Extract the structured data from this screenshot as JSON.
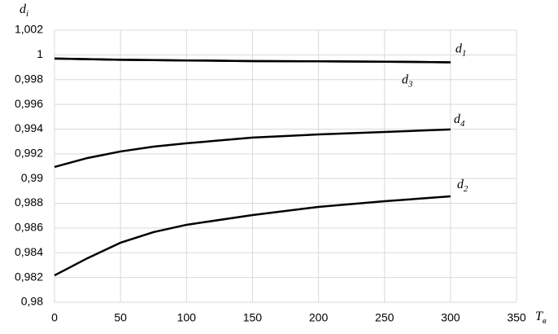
{
  "chart_data": {
    "type": "line",
    "y_label": "di",
    "x_label": "Tв",
    "x": [
      0,
      25,
      50,
      75,
      100,
      150,
      200,
      250,
      300
    ],
    "series": [
      {
        "name": "d1",
        "color": "#000000",
        "values": [
          0.9997,
          0.99965,
          0.9996,
          0.99958,
          0.99955,
          0.9995,
          0.99948,
          0.99945,
          0.9994
        ]
      },
      {
        "name": "d3",
        "color": "#000000",
        "values": [
          0.9997,
          0.99965,
          0.9996,
          0.99958,
          0.99955,
          0.9995,
          0.99948,
          0.99945,
          0.9994
        ]
      },
      {
        "name": "d4",
        "color": "#000000",
        "values": [
          0.99094,
          0.99166,
          0.99219,
          0.99258,
          0.99285,
          0.99331,
          0.99357,
          0.99377,
          0.99397
        ]
      },
      {
        "name": "d2",
        "color": "#000000",
        "values": [
          0.98217,
          0.98356,
          0.98481,
          0.98567,
          0.98626,
          0.98705,
          0.98771,
          0.98817,
          0.98856
        ]
      }
    ],
    "xlim": [
      0,
      350
    ],
    "xticks": [
      0,
      50,
      100,
      150,
      200,
      250,
      300,
      350
    ],
    "ylim": [
      0.98,
      1.002
    ],
    "yticks": [
      {
        "value": 0.98,
        "label": "0,98"
      },
      {
        "value": 0.982,
        "label": "0,982"
      },
      {
        "value": 0.984,
        "label": "0,984"
      },
      {
        "value": 0.986,
        "label": "0,986"
      },
      {
        "value": 0.988,
        "label": "0,988"
      },
      {
        "value": 0.99,
        "label": "0,99"
      },
      {
        "value": 0.992,
        "label": "0,992"
      },
      {
        "value": 0.994,
        "label": "0,994"
      },
      {
        "value": 0.996,
        "label": "0,996"
      },
      {
        "value": 0.998,
        "label": "0,998"
      },
      1,
      {
        "value": 1.002,
        "label": "1,002"
      }
    ],
    "grid": true
  }
}
